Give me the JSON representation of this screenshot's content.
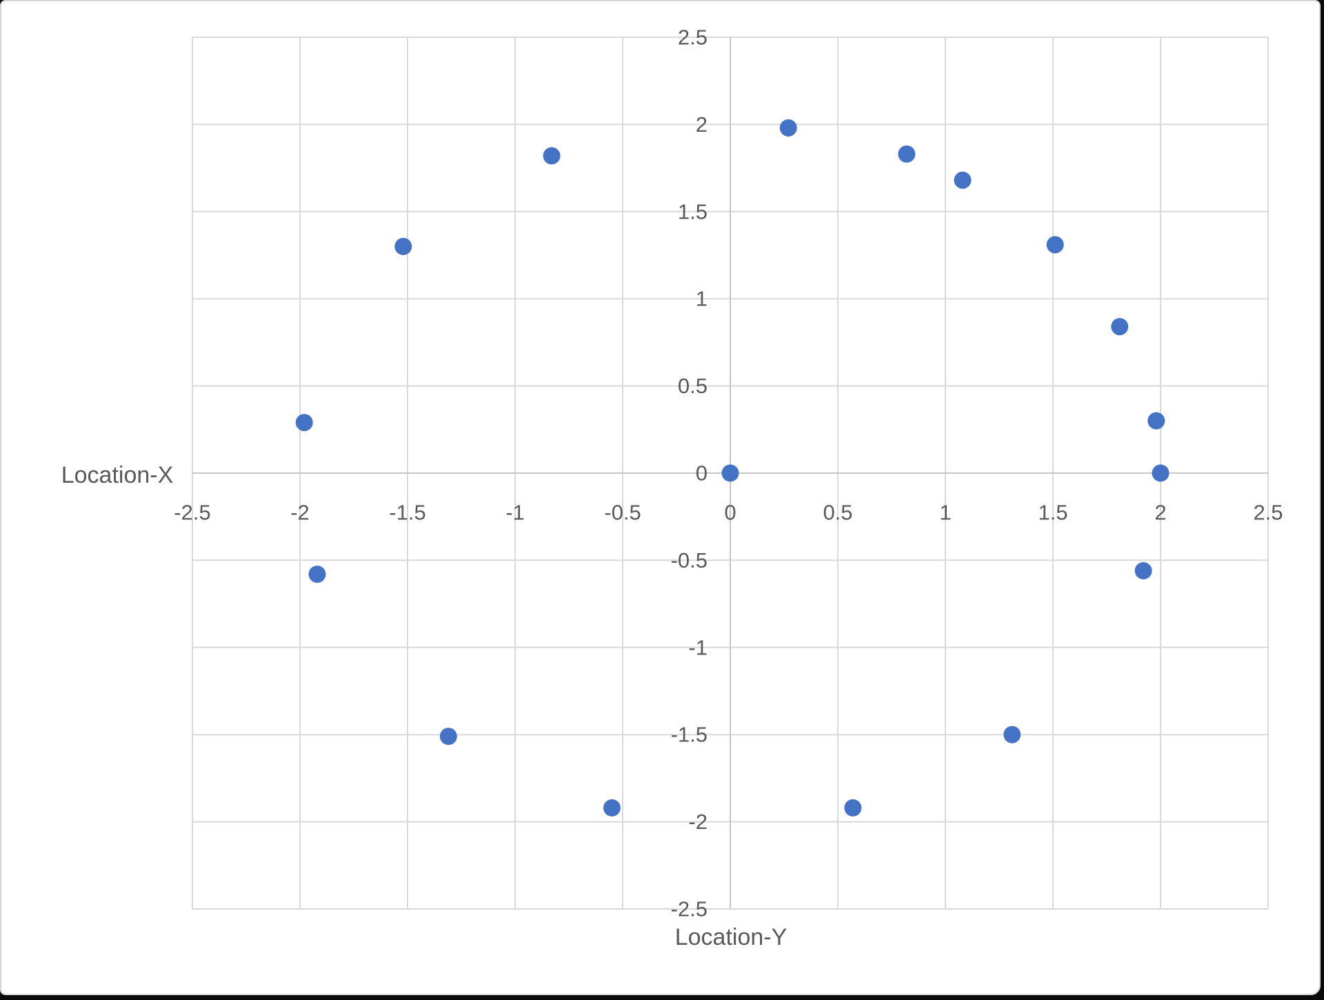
{
  "window": {
    "background": "#ffffff",
    "border_color": "#d6d6d6",
    "shadow_color": "#0a0a0a"
  },
  "chart_data": {
    "type": "scatter",
    "title": "",
    "xlabel": "Location-Y",
    "ylabel": "Location-X",
    "xlim": [
      -2.5,
      2.5
    ],
    "ylim": [
      -2.5,
      2.5
    ],
    "x_ticks": [
      -2.5,
      -2,
      -1.5,
      -1,
      -0.5,
      0,
      0.5,
      1,
      1.5,
      2,
      2.5
    ],
    "y_ticks": [
      2.5,
      2,
      1.5,
      1,
      0.5,
      0,
      -0.5,
      -1,
      -1.5,
      -2,
      -2.5
    ],
    "grid": true,
    "legend": false,
    "marker_color": "#4472C4",
    "gridline_color": "#D9D9D9",
    "axis_line_color": "#C6C6C6",
    "label_color": "#595959",
    "series": [
      {
        "points": [
          {
            "x": 0.27,
            "y": 1.98
          },
          {
            "x": 0.82,
            "y": 1.83
          },
          {
            "x": 1.08,
            "y": 1.68
          },
          {
            "x": 1.51,
            "y": 1.31
          },
          {
            "x": 1.81,
            "y": 0.84
          },
          {
            "x": 1.98,
            "y": 0.3
          },
          {
            "x": 2.0,
            "y": 0.0
          },
          {
            "x": 1.92,
            "y": -0.56
          },
          {
            "x": 1.31,
            "y": -1.5
          },
          {
            "x": 0.57,
            "y": -1.92
          },
          {
            "x": 0.0,
            "y": 0.0
          },
          {
            "x": -0.55,
            "y": -1.92
          },
          {
            "x": -1.31,
            "y": -1.51
          },
          {
            "x": -1.92,
            "y": -0.58
          },
          {
            "x": -1.98,
            "y": 0.29
          },
          {
            "x": -1.52,
            "y": 1.3
          },
          {
            "x": -0.83,
            "y": 1.82
          }
        ]
      }
    ]
  }
}
